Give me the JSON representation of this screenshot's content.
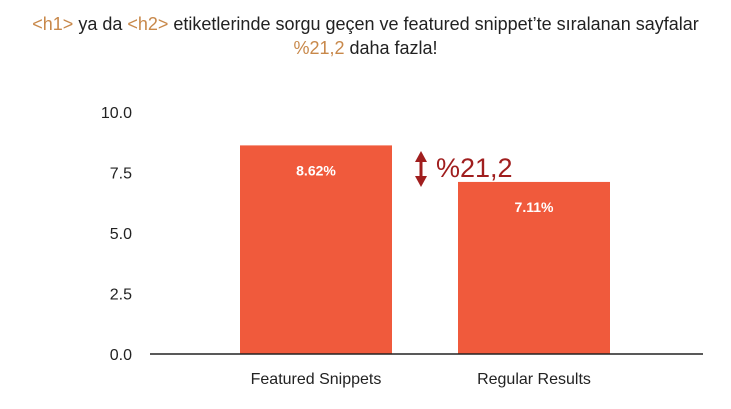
{
  "title": {
    "line1_tag1": "<h1>",
    "line1_text1": " ya da ",
    "line1_tag2": "<h2>",
    "line1_text2": " etiketlerinde sorgu geçen ve featured snippet’te sıralanan sayfalar",
    "line2_value": "%21,2",
    "line2_text": " daha fazla!"
  },
  "colors": {
    "bar": "#f05a3c",
    "highlight": "#c8884a",
    "annotation": "#a01e1e",
    "axis": "#222222"
  },
  "chart_data": {
    "type": "bar",
    "categories": [
      "Featured Snippets",
      "Regular Results"
    ],
    "values": [
      8.62,
      7.11
    ],
    "data_labels": [
      "8.62%",
      "7.11%"
    ],
    "yticks": [
      "0.0",
      "2.5",
      "5.0",
      "7.5",
      "10.0"
    ],
    "ylim": [
      0,
      10
    ],
    "grid": false,
    "annotation": {
      "text": "%21,2",
      "icon": "double-arrow-vertical-icon"
    }
  }
}
